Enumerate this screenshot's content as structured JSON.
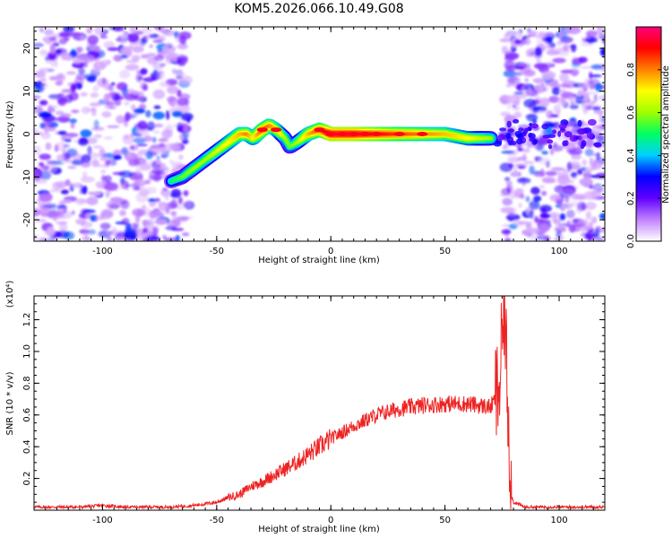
{
  "title": "KOM5.2026.066.10.49.G08",
  "chart_data": [
    {
      "type": "heatmap",
      "title": "KOM5.2026.066.10.49.G08",
      "xlabel": "Height of straight line (km)",
      "ylabel": "Frequency (Hz)",
      "xlim": [
        -130,
        120
      ],
      "ylim": [
        -25,
        25
      ],
      "xticks": [
        "-100",
        "-50",
        "0",
        "50",
        "100"
      ],
      "yticks": [
        "-20",
        "-10",
        "0",
        "10",
        "20"
      ],
      "colorbar": {
        "label": "Normalized spectral amplitude",
        "range": [
          0,
          1
        ],
        "ticks": [
          "0.0",
          "0.2",
          "0.4",
          "0.6",
          "0.8"
        ],
        "colors": [
          "#ffffff",
          "#c080ff",
          "#6000ff",
          "#0000ff",
          "#00d0ff",
          "#00ff60",
          "#a0ff00",
          "#ffff00",
          "#ff8000",
          "#ff0000",
          "#ff0080"
        ]
      },
      "ridge": {
        "x": [
          -70,
          -65,
          -60,
          -55,
          -50,
          -45,
          -40,
          -37,
          -34,
          -30,
          -27,
          -24,
          -20,
          -18,
          -15,
          -10,
          -5,
          0,
          10,
          20,
          30,
          40,
          50,
          60,
          65,
          70
        ],
        "y": [
          -11,
          -10,
          -8,
          -6,
          -4,
          -2,
          0,
          0,
          -1,
          1,
          2,
          1,
          -1,
          -3,
          -2,
          0,
          1,
          0,
          0,
          0,
          0,
          0,
          0,
          -1,
          -1,
          -1
        ],
        "amp": [
          0.5,
          0.55,
          0.6,
          0.6,
          0.65,
          0.7,
          0.75,
          0.8,
          0.7,
          0.85,
          0.8,
          0.75,
          0.6,
          0.55,
          0.6,
          0.75,
          0.85,
          0.95,
          0.95,
          0.9,
          0.85,
          0.8,
          0.75,
          0.7,
          0.65,
          0.6
        ]
      }
    },
    {
      "type": "line",
      "xlabel": "Height of straight line (km)",
      "ylabel": "SNR (10 * v/v)",
      "yscale_label": "(x10⁴)",
      "xlim": [
        -130,
        120
      ],
      "ylim": [
        0,
        1.35
      ],
      "xticks": [
        "-100",
        "-50",
        "0",
        "50",
        "100"
      ],
      "yticks": [
        "0.2",
        "0.4",
        "0.6",
        "0.8",
        "1.0",
        "1.2"
      ],
      "color": "#ee2222",
      "series": [
        {
          "name": "SNR",
          "x": [
            -130,
            -110,
            -100,
            -90,
            -70,
            -60,
            -50,
            -45,
            -40,
            -35,
            -30,
            -25,
            -20,
            -15,
            -10,
            -5,
            0,
            10,
            20,
            30,
            40,
            50,
            60,
            65,
            70,
            72,
            74,
            75,
            76,
            77,
            78,
            79,
            80,
            85,
            100,
            120
          ],
          "y": [
            0.02,
            0.02,
            0.03,
            0.02,
            0.02,
            0.03,
            0.05,
            0.08,
            0.1,
            0.15,
            0.18,
            0.22,
            0.26,
            0.3,
            0.35,
            0.4,
            0.45,
            0.53,
            0.6,
            0.64,
            0.66,
            0.67,
            0.67,
            0.66,
            0.65,
            0.7,
            0.78,
            1.05,
            1.3,
            0.9,
            0.5,
            0.1,
            0.05,
            0.02,
            0.02,
            0.02
          ]
        }
      ]
    }
  ]
}
